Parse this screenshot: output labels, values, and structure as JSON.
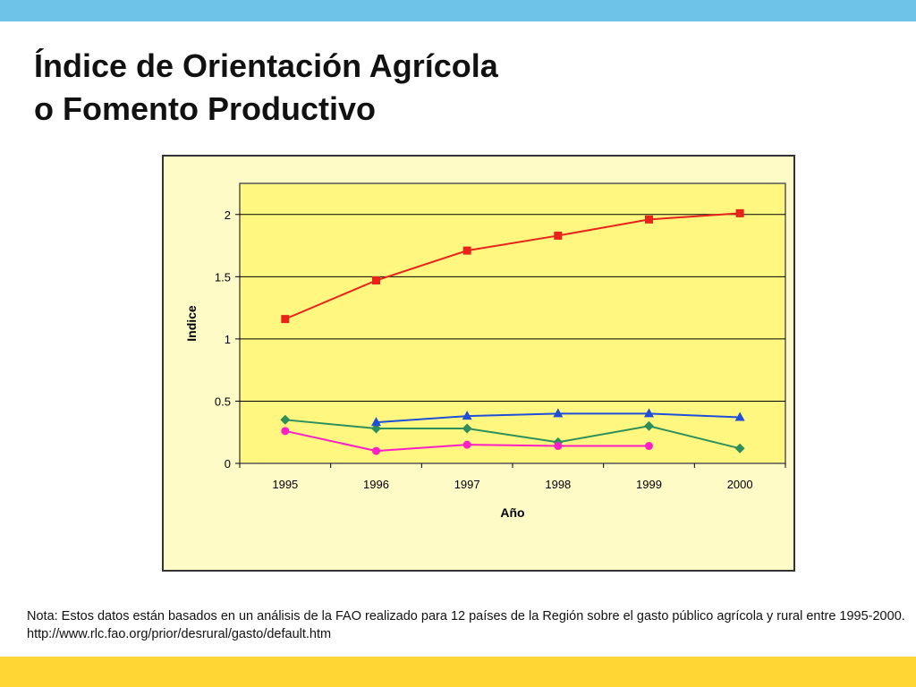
{
  "slide": {
    "title_line1": "Índice de Orientación Agrícola",
    "title_line2": "o Fomento Productivo",
    "note": "Nota: Estos datos están basados en un análisis de la FAO realizado para 12 países de la Región sobre el gasto público agrícola y rural entre 1995-2000. http://www.rlc.fao.org/prior/desrural/gasto/default.htm",
    "colors": {
      "top_band": "#6ec3e8",
      "bottom_band": "#ffd633",
      "chart_bg": "#fffbc7",
      "plot_bg": "#fff780"
    }
  },
  "chart_data": {
    "type": "line",
    "xlabel": "Año",
    "ylabel": "Indice",
    "categories": [
      "1995",
      "1996",
      "1997",
      "1998",
      "1999",
      "2000"
    ],
    "ylim": [
      0,
      2.25
    ],
    "yticks": [
      0,
      0.5,
      1,
      1.5,
      2
    ],
    "ytick_labels": [
      "0",
      "0.5",
      "1",
      "1.5",
      "2"
    ],
    "grid": "horizontal",
    "legend": "none",
    "series": [
      {
        "color": "#e8231a",
        "marker": "square",
        "values": [
          1.16,
          1.47,
          1.71,
          1.83,
          1.96,
          2.01
        ]
      },
      {
        "color": "#2f8f5b",
        "marker": "diamond",
        "values": [
          0.35,
          0.28,
          0.28,
          0.17,
          0.3,
          0.12
        ]
      },
      {
        "color": "#1f4fd8",
        "marker": "triangle",
        "values": [
          null,
          0.33,
          0.38,
          0.4,
          0.4,
          0.37
        ]
      },
      {
        "color": "#ff1fc7",
        "marker": "circle",
        "values": [
          0.26,
          0.1,
          0.15,
          0.14,
          0.14,
          null
        ]
      }
    ]
  }
}
